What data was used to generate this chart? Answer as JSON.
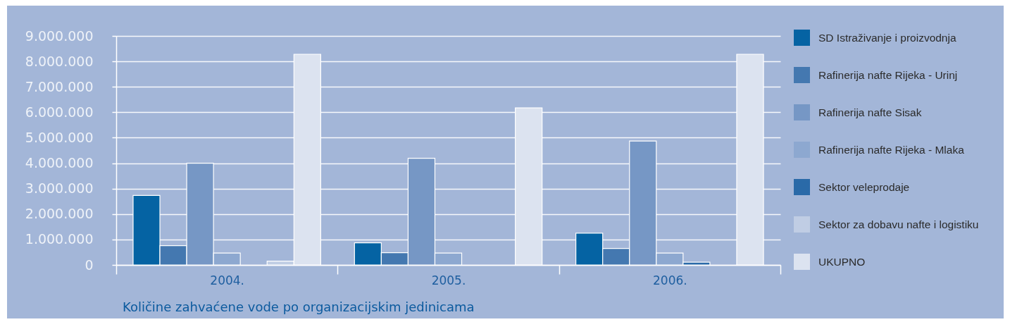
{
  "chart_data": {
    "type": "bar",
    "title": "Količine zahvaćene vode po organizacijskim jedinicama",
    "categories": [
      "2004.",
      "2005.",
      "2006."
    ],
    "series": [
      {
        "name": "SD Istraživanje i proizvodnja",
        "color": "#0563a3",
        "values": [
          2730000,
          870000,
          1250000
        ]
      },
      {
        "name": "Rafinerija nafte Rijeka - Urinj",
        "color": "#4478b0",
        "values": [
          760000,
          480000,
          650000
        ]
      },
      {
        "name": "Rafinerija nafte Sisak",
        "color": "#7697c5",
        "values": [
          4000000,
          4190000,
          4870000
        ]
      },
      {
        "name": "Rafinerija nafte Rijeka - Mlaka",
        "color": "#8da8d0",
        "values": [
          470000,
          470000,
          470000
        ]
      },
      {
        "name": "Sektor veleprodaje",
        "color": "#2a6aa8",
        "values": [
          null,
          null,
          110000
        ]
      },
      {
        "name": "Sektor za dobavu nafte i logistiku",
        "color": "#c0cde4",
        "values": [
          150000,
          null,
          null
        ]
      },
      {
        "name": "UKUPNO",
        "color": "#dce3f0",
        "values": [
          8280000,
          6170000,
          8280000
        ]
      }
    ],
    "ylim": [
      0,
      9000000
    ],
    "yticks": [
      0,
      {
        "value": 1000000,
        "label": "1.000.000"
      },
      {
        "value": 2000000,
        "label": "2.000.000"
      },
      {
        "value": 3000000,
        "label": "3.000.000"
      },
      {
        "value": 4000000,
        "label": "4.000.000"
      },
      {
        "value": 5000000,
        "label": "5.000.000"
      },
      {
        "value": 6000000,
        "label": "6.000.000"
      },
      {
        "value": 7000000,
        "label": "7.000.000"
      },
      {
        "value": 8000000,
        "label": "8.000.000"
      },
      {
        "value": 9000000,
        "label": "9.000.000"
      }
    ],
    "grid": "y",
    "legend": "right"
  }
}
